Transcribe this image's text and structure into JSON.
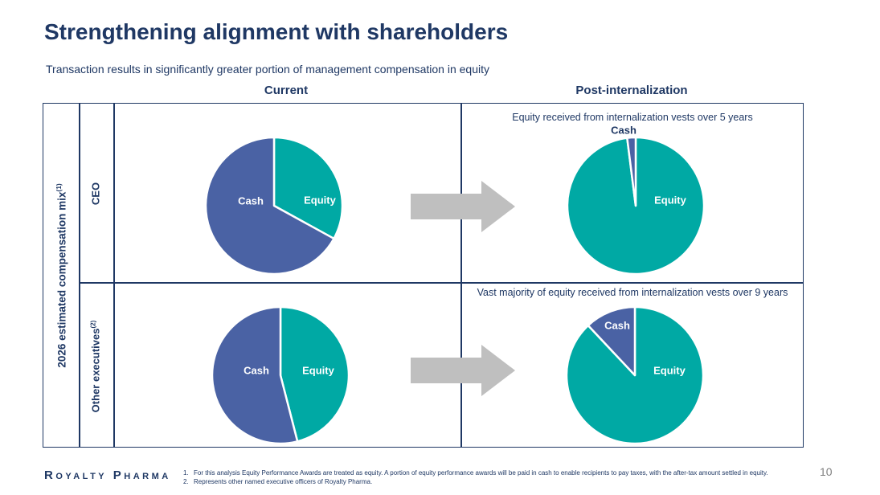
{
  "slide": {
    "title": "Strengthening alignment with shareholders",
    "subtitle": "Transaction results in significantly greater portion of management compensation in equity",
    "page_number": "10"
  },
  "matrix": {
    "col_headers": [
      "Current",
      "Post-internalization"
    ],
    "row_group_label": {
      "text": "2026 estimated compensation mix",
      "sup": "(1)"
    },
    "row_labels": [
      {
        "text": "CEO",
        "sup": ""
      },
      {
        "text": "Other executives",
        "sup": "(2)"
      }
    ],
    "annotations": {
      "ceo_post": "Equity received from internalization vests over 5 years",
      "other_post": "Vast majority of equity received from internalization vests over 9 years"
    }
  },
  "footer": {
    "logo": "Royalty Pharma",
    "footnotes": [
      {
        "num": "1.",
        "text": "For this analysis Equity Performance Awards are treated as equity. A portion of equity performance awards will be paid in cash to enable recipients to pay taxes, with the after-tax amount settled in equity."
      },
      {
        "num": "2.",
        "text": "Represents other named executive officers of Royalty Pharma."
      }
    ]
  },
  "colors": {
    "navy": "#1F3864",
    "teal": "#00A9A4",
    "blue": "#4A62A4",
    "arrow_gray": "#BFBFBF",
    "page_gray": "#7F7F7F",
    "slice_divider": "#FFFFFF"
  },
  "chart_data": [
    {
      "id": "ceo-current",
      "type": "pie",
      "row": "CEO",
      "column": "Current",
      "units": "percent of compensation",
      "slices": [
        {
          "label": "Equity",
          "value": 33,
          "color": "teal",
          "label_color": "#FFFFFF",
          "label_offset": [
            57,
            -7
          ]
        },
        {
          "label": "Cash",
          "value": 67,
          "color": "blue",
          "label_color": "#FFFFFF",
          "label_offset": [
            -29,
            -6
          ]
        }
      ]
    },
    {
      "id": "ceo-post",
      "type": "pie",
      "row": "CEO",
      "column": "Post-internalization",
      "units": "percent of compensation",
      "slices": [
        {
          "label": "Equity",
          "value": 98,
          "color": "teal",
          "label_color": "#FFFFFF",
          "label_offset": [
            43,
            -7
          ]
        },
        {
          "label": "Cash",
          "value": 2,
          "color": "blue",
          "label_color": "#1F3864",
          "label_offset": [
            -15,
            -94
          ]
        }
      ]
    },
    {
      "id": "other-current",
      "type": "pie",
      "row": "Other executives",
      "column": "Current",
      "units": "percent of compensation",
      "slices": [
        {
          "label": "Equity",
          "value": 46,
          "color": "teal",
          "label_color": "#FFFFFF",
          "label_offset": [
            47,
            -6
          ]
        },
        {
          "label": "Cash",
          "value": 54,
          "color": "blue",
          "label_color": "#FFFFFF",
          "label_offset": [
            -30,
            -6
          ]
        }
      ]
    },
    {
      "id": "other-post",
      "type": "pie",
      "row": "Other executives",
      "column": "Post-internalization",
      "units": "percent of compensation",
      "slices": [
        {
          "label": "Equity",
          "value": 88,
          "color": "teal",
          "label_color": "#FFFFFF",
          "label_offset": [
            43,
            -6
          ]
        },
        {
          "label": "Cash",
          "value": 12,
          "color": "blue",
          "label_color": "#FFFFFF",
          "label_offset": [
            -22,
            -62
          ]
        }
      ]
    }
  ]
}
